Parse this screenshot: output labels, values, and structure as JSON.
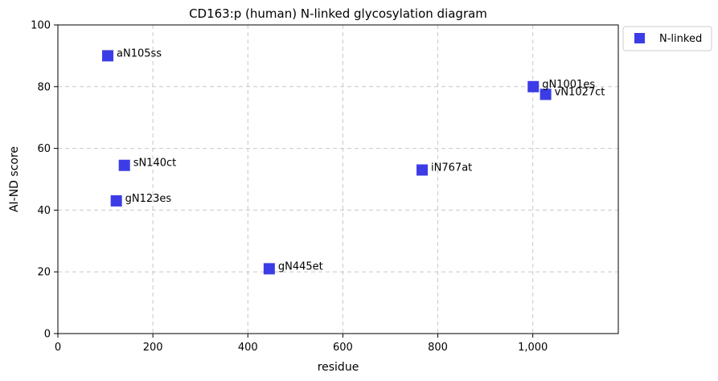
{
  "chart_data": {
    "type": "scatter",
    "title": "CD163:p (human) N-linked glycosylation diagram",
    "xlabel": "residue",
    "ylabel": "AI-ND score",
    "xlim": [
      0,
      1180
    ],
    "ylim": [
      0,
      100
    ],
    "x_ticks": [
      0,
      200,
      400,
      600,
      800,
      1000
    ],
    "x_tick_labels": [
      "0",
      "200",
      "400",
      "600",
      "800",
      "1,000"
    ],
    "y_ticks": [
      0,
      20,
      40,
      60,
      80,
      100
    ],
    "y_tick_labels": [
      "0",
      "20",
      "40",
      "60",
      "80",
      "100"
    ],
    "grid": true,
    "legend_position": "outside-top-right",
    "series": [
      {
        "name": "N-linked",
        "color": "#3c3ce6",
        "marker": "square",
        "points": [
          {
            "x": 105,
            "y": 90,
            "label": "aN105ss"
          },
          {
            "x": 123,
            "y": 43,
            "label": "gN123es"
          },
          {
            "x": 140,
            "y": 54.5,
            "label": "sN140ct"
          },
          {
            "x": 445,
            "y": 21,
            "label": "gN445et"
          },
          {
            "x": 767,
            "y": 53,
            "label": "iN767at"
          },
          {
            "x": 1001,
            "y": 80,
            "label": "gN1001es"
          },
          {
            "x": 1027,
            "y": 77.5,
            "label": "vN1027ct"
          }
        ]
      }
    ]
  }
}
